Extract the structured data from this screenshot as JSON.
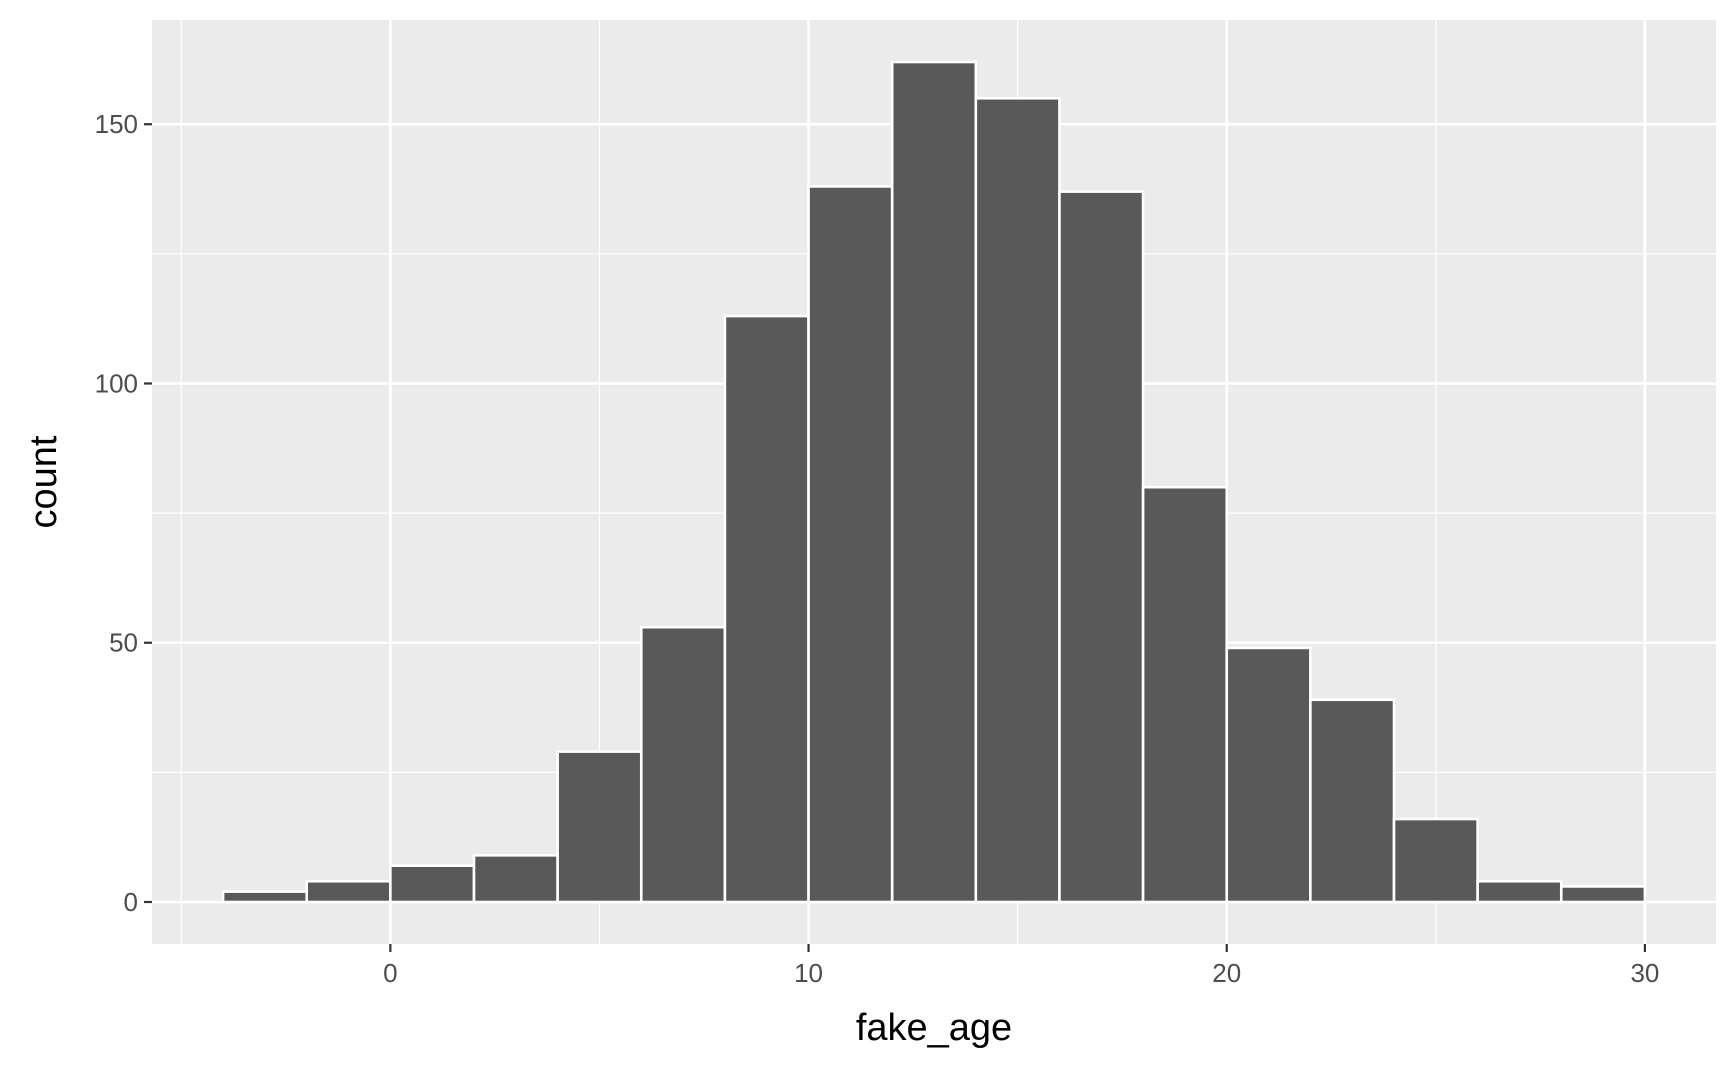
{
  "chart_data": {
    "type": "histogram",
    "xlabel": "fake_age",
    "ylabel": "count",
    "binwidth": 2,
    "bins": [
      {
        "x0": -4,
        "x1": -2,
        "count": 2
      },
      {
        "x0": -2,
        "x1": 0,
        "count": 4
      },
      {
        "x0": 0,
        "x1": 2,
        "count": 7
      },
      {
        "x0": 2,
        "x1": 4,
        "count": 9
      },
      {
        "x0": 4,
        "x1": 6,
        "count": 29
      },
      {
        "x0": 6,
        "x1": 8,
        "count": 53
      },
      {
        "x0": 8,
        "x1": 10,
        "count": 113
      },
      {
        "x0": 10,
        "x1": 12,
        "count": 138
      },
      {
        "x0": 12,
        "x1": 14,
        "count": 162
      },
      {
        "x0": 14,
        "x1": 16,
        "count": 155
      },
      {
        "x0": 16,
        "x1": 18,
        "count": 137
      },
      {
        "x0": 18,
        "x1": 20,
        "count": 80
      },
      {
        "x0": 20,
        "x1": 22,
        "count": 49
      },
      {
        "x0": 22,
        "x1": 24,
        "count": 39
      },
      {
        "x0": 24,
        "x1": 26,
        "count": 16
      },
      {
        "x0": 26,
        "x1": 28,
        "count": 4
      },
      {
        "x0": 28,
        "x1": 30,
        "count": 3
      }
    ],
    "xlim": [
      -5.7,
      31.7
    ],
    "ylim": [
      -8.1,
      170.1
    ],
    "x_ticks": [
      0,
      10,
      20,
      30
    ],
    "x_tick_labels": [
      "0",
      "10",
      "20",
      "30"
    ],
    "x_minor_ticks": [
      -5,
      5,
      15,
      25
    ],
    "y_ticks": [
      0,
      50,
      100,
      150
    ],
    "y_tick_labels": [
      "0",
      "50",
      "100",
      "150"
    ],
    "y_minor_ticks": [
      25,
      75,
      125
    ],
    "grid": true,
    "colors": {
      "panel_background": "#EBEBEB",
      "grid_line": "#FFFFFF",
      "bar_fill": "#595959",
      "bar_outline": "#FFFFFF",
      "tick_mark": "#333333"
    }
  }
}
